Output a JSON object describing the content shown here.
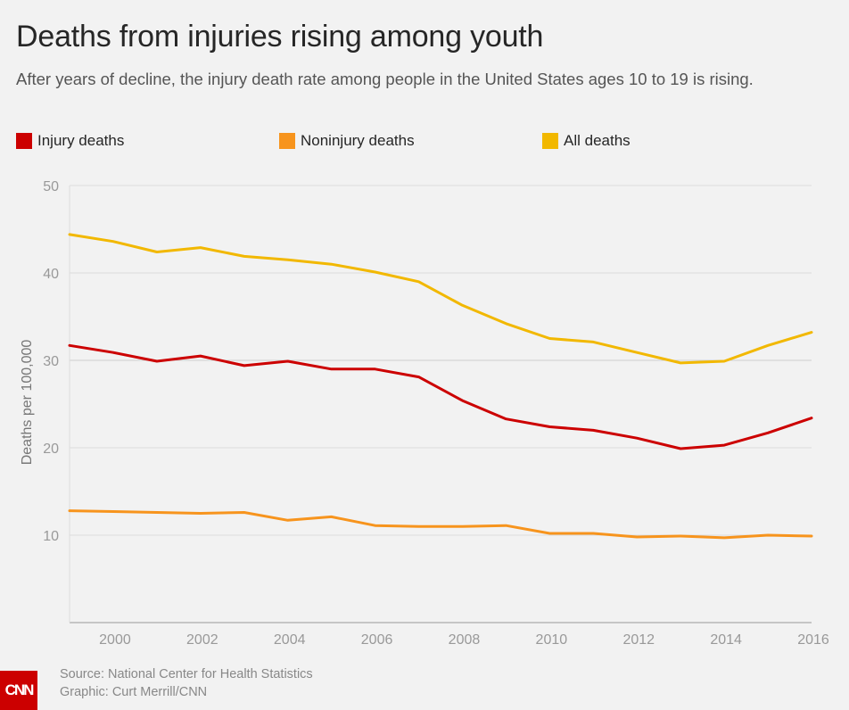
{
  "title": "Deaths from injuries rising among youth",
  "subtitle": "After years of decline, the injury death rate among people in the United States ages 10 to 19 is rising.",
  "chart_data": {
    "type": "line",
    "ylabel": "Deaths per 100,000",
    "xlabel": "",
    "ylim": [
      0,
      50
    ],
    "xlim": [
      1999,
      2016
    ],
    "yticks": [
      10,
      20,
      30,
      40,
      50
    ],
    "xticks": [
      2000,
      2002,
      2004,
      2006,
      2008,
      2010,
      2012,
      2014,
      2016
    ],
    "grid": true,
    "legend": "top",
    "x": [
      1999,
      2000,
      2001,
      2002,
      2003,
      2004,
      2005,
      2006,
      2007,
      2008,
      2009,
      2010,
      2011,
      2012,
      2013,
      2014,
      2015,
      2016
    ],
    "series": [
      {
        "name": "Injury deaths",
        "color": "#cc0000",
        "values": [
          31.7,
          30.9,
          29.9,
          30.5,
          29.4,
          29.9,
          29.0,
          29.0,
          28.1,
          25.4,
          23.3,
          22.4,
          22.0,
          21.1,
          19.9,
          20.3,
          21.7,
          23.4
        ]
      },
      {
        "name": "Noninjury deaths",
        "color": "#f7941d",
        "values": [
          12.8,
          12.7,
          12.6,
          12.5,
          12.6,
          11.7,
          12.1,
          11.1,
          11.0,
          11.0,
          11.1,
          10.2,
          10.2,
          9.8,
          9.9,
          9.7,
          10.0,
          9.9
        ]
      },
      {
        "name": "All deaths",
        "color": "#f2b800",
        "values": [
          44.4,
          43.6,
          42.4,
          42.9,
          41.9,
          41.5,
          41.0,
          40.1,
          39.0,
          36.3,
          34.2,
          32.5,
          32.1,
          30.9,
          29.7,
          29.9,
          31.7,
          33.2
        ]
      }
    ]
  },
  "source": "Source: National Center for Health Statistics",
  "graphic_credit": "Graphic: Curt Merrill/CNN",
  "logo_text": "CNN"
}
